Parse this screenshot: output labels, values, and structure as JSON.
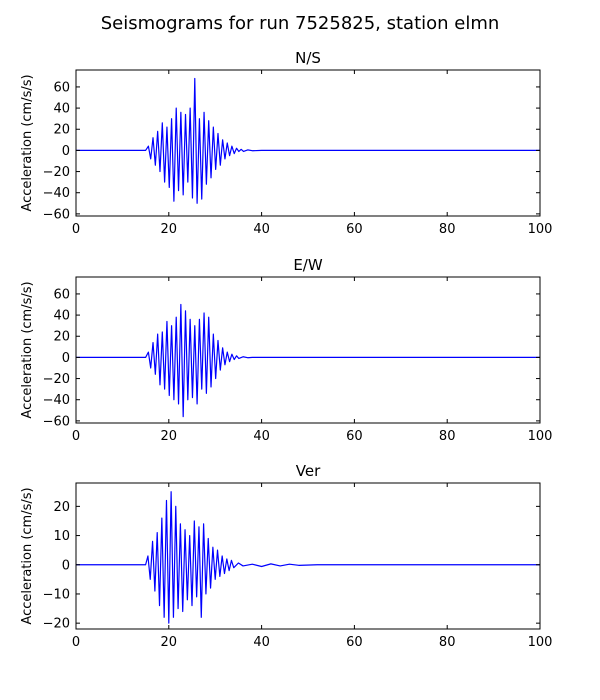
{
  "figure": {
    "title": "Seismograms for run 7525825, station elmn"
  },
  "chart_data": [
    {
      "type": "line",
      "title": "N/S",
      "xlabel": "",
      "ylabel": "Acceleration (cm/s/s)",
      "xlim": [
        0,
        100
      ],
      "ylim": [
        -62,
        76
      ],
      "xticks": [
        0,
        20,
        40,
        60,
        80,
        100
      ],
      "yticks": [
        -60,
        -40,
        -20,
        0,
        20,
        40,
        60
      ],
      "grid": false,
      "line_color": "#0000ff",
      "series": [
        {
          "x": [
            0,
            15.0,
            15.6,
            16.1,
            16.6,
            17.1,
            17.6,
            18.1,
            18.6,
            19.1,
            19.6,
            20.1,
            20.6,
            21.1,
            21.6,
            22.1,
            22.6,
            23.1,
            23.6,
            24.1,
            24.6,
            25.1,
            25.6,
            26.1,
            26.6,
            27.1,
            27.6,
            28.1,
            28.6,
            29.1,
            29.6,
            30.1,
            30.6,
            31.1,
            31.6,
            32.1,
            32.6,
            33.1,
            33.6,
            34.1,
            34.6,
            35.1,
            35.6,
            36.1,
            37.0,
            38.0,
            40.0,
            100
          ],
          "y": [
            0,
            0,
            4,
            -8,
            12,
            -14,
            18,
            -20,
            26,
            -30,
            22,
            -35,
            30,
            -48,
            40,
            -38,
            36,
            -42,
            34,
            -30,
            40,
            -45,
            68,
            -50,
            30,
            -46,
            36,
            -32,
            28,
            -26,
            22,
            -18,
            16,
            -14,
            10,
            -8,
            7,
            -5,
            4,
            -3,
            2,
            -1,
            1,
            -1,
            0.5,
            -0.3,
            0,
            0
          ]
        }
      ]
    },
    {
      "type": "line",
      "title": "E/W",
      "xlabel": "",
      "ylabel": "Acceleration (cm/s/s)",
      "xlim": [
        0,
        100
      ],
      "ylim": [
        -62,
        76
      ],
      "xticks": [
        0,
        20,
        40,
        60,
        80,
        100
      ],
      "yticks": [
        -60,
        -40,
        -20,
        0,
        20,
        40,
        60
      ],
      "grid": false,
      "line_color": "#0000ff",
      "series": [
        {
          "x": [
            0,
            15.0,
            15.6,
            16.1,
            16.6,
            17.1,
            17.6,
            18.1,
            18.6,
            19.1,
            19.6,
            20.1,
            20.6,
            21.1,
            21.6,
            22.1,
            22.6,
            23.1,
            23.6,
            24.1,
            24.6,
            25.1,
            25.6,
            26.1,
            26.6,
            27.1,
            27.6,
            28.1,
            28.6,
            29.1,
            29.6,
            30.1,
            30.6,
            31.1,
            31.6,
            32.1,
            32.6,
            33.1,
            33.6,
            34.1,
            34.6,
            35.1,
            36.0,
            37.0,
            38.0,
            100
          ],
          "y": [
            0,
            0,
            5,
            -10,
            14,
            -16,
            22,
            -26,
            24,
            -30,
            34,
            -36,
            30,
            -40,
            38,
            -44,
            50,
            -56,
            44,
            -40,
            36,
            -38,
            30,
            -44,
            36,
            -30,
            42,
            -34,
            38,
            -28,
            22,
            -20,
            16,
            -12,
            9,
            -7,
            5,
            -4,
            3,
            -2,
            1.5,
            -1,
            0.6,
            -0.3,
            0,
            0
          ]
        }
      ]
    },
    {
      "type": "line",
      "title": "Ver",
      "xlabel": "",
      "ylabel": "Acceleration (cm/s/s)",
      "xlim": [
        0,
        100
      ],
      "ylim": [
        -22,
        28
      ],
      "xticks": [
        0,
        20,
        40,
        60,
        80,
        100
      ],
      "yticks": [
        -20,
        -10,
        0,
        10,
        20
      ],
      "grid": false,
      "line_color": "#0000ff",
      "series": [
        {
          "x": [
            0,
            15.0,
            15.5,
            16.0,
            16.5,
            17.0,
            17.5,
            18.0,
            18.5,
            19.0,
            19.5,
            20.0,
            20.5,
            21.0,
            21.5,
            22.0,
            22.5,
            23.0,
            23.5,
            24.0,
            24.5,
            25.0,
            25.5,
            26.0,
            26.5,
            27.0,
            27.5,
            28.0,
            28.5,
            29.0,
            29.5,
            30.0,
            30.5,
            31.0,
            31.5,
            32.0,
            32.5,
            33.0,
            33.5,
            34.0,
            35.0,
            36.0,
            38.0,
            40.0,
            42.0,
            44.0,
            46.0,
            48.0,
            52.0,
            100
          ],
          "y": [
            0,
            0,
            3,
            -5,
            8,
            -9,
            11,
            -14,
            16,
            -18,
            22,
            -20,
            25,
            -18,
            20,
            -15,
            14,
            -16,
            12,
            -12,
            10,
            -14,
            15,
            -11,
            13,
            -18,
            14,
            -10,
            9,
            -8,
            6,
            -5,
            5,
            -4,
            3,
            -3,
            2,
            -2,
            1.5,
            -1,
            0.6,
            -0.4,
            0.2,
            -0.6,
            0.3,
            -0.4,
            0.2,
            -0.2,
            0,
            0
          ]
        }
      ]
    }
  ]
}
